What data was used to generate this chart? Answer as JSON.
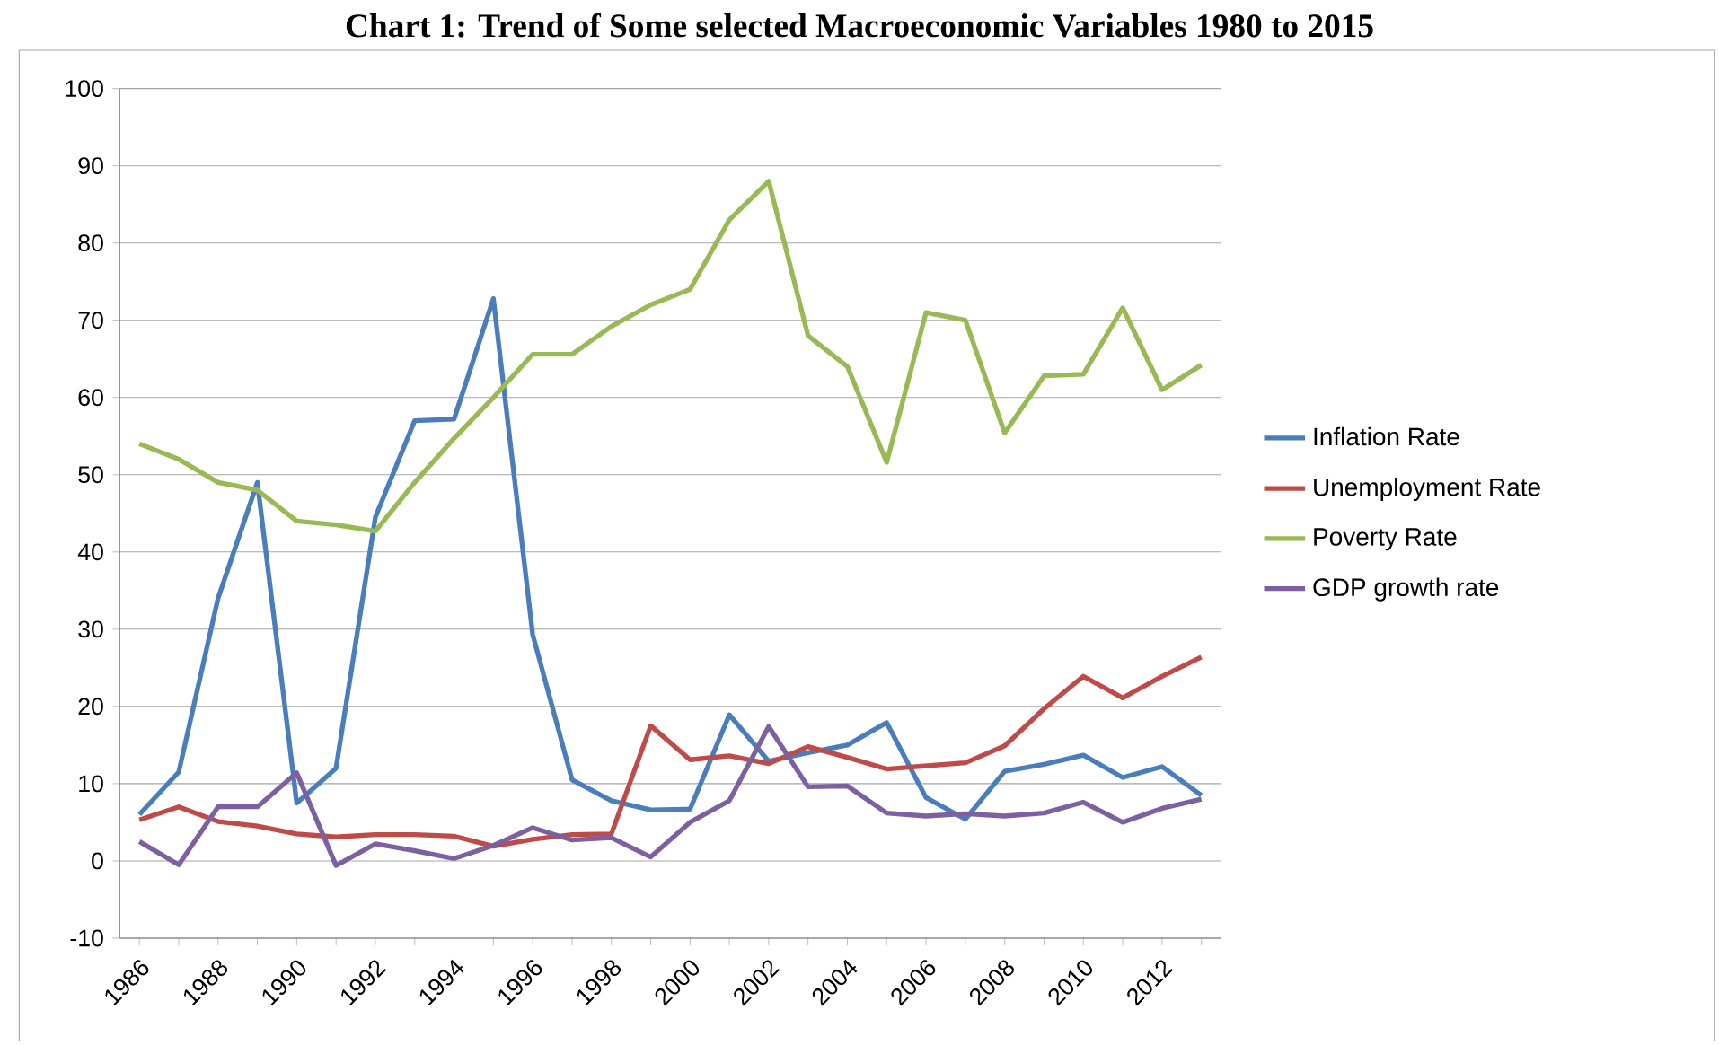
{
  "chart_data": {
    "type": "line",
    "title": "Chart 1: Trend of Some selected Macroeconomic Variables 1980 to 2015",
    "categories": [
      "1986",
      null,
      "1988",
      null,
      "1990",
      null,
      "1992",
      null,
      "1994",
      null,
      "1996",
      null,
      "1998",
      null,
      "2000",
      null,
      "2002",
      null,
      "2004",
      null,
      "2006",
      null,
      "2008",
      null,
      "2010",
      null,
      "2012",
      null
    ],
    "series": [
      {
        "name": "Inflation Rate",
        "color": "#4a7ebb",
        "values": [
          6,
          11.5,
          34,
          49,
          7.5,
          12,
          44.5,
          57,
          57.2,
          72.8,
          29.3,
          10.5,
          7.8,
          6.6,
          6.7,
          18.9,
          12.9,
          14,
          15,
          17.9,
          8.2,
          5.4,
          11.6,
          12.5,
          13.7,
          10.8,
          12.2,
          8.5
        ]
      },
      {
        "name": "Unemployment Rate",
        "color": "#be4b48",
        "values": [
          5.3,
          7,
          5.1,
          4.5,
          3.5,
          3.1,
          3.4,
          3.4,
          3.2,
          1.9,
          2.8,
          3.4,
          3.5,
          17.5,
          13.1,
          13.6,
          12.6,
          14.8,
          13.4,
          11.9,
          12.3,
          12.7,
          14.9,
          19.7,
          23.9,
          21.1,
          23.9,
          26.4
        ]
      },
      {
        "name": "Poverty Rate",
        "color": "#98b954",
        "values": [
          54,
          52,
          49,
          48,
          44,
          43.5,
          42.7,
          49,
          54.7,
          60,
          65.6,
          65.6,
          69.2,
          72,
          74,
          83,
          88,
          68,
          64,
          51.6,
          71,
          70,
          55.4,
          62.8,
          63,
          71.6,
          61,
          64.2
        ]
      },
      {
        "name": "GDP growth rate",
        "color": "#7d60a0",
        "values": [
          2.5,
          -0.5,
          7,
          7,
          11.4,
          -0.6,
          2.2,
          1.3,
          0.3,
          2,
          4.3,
          2.7,
          3,
          0.5,
          5,
          7.8,
          17.4,
          9.6,
          9.7,
          6.2,
          5.8,
          6.1,
          5.8,
          6.2,
          7.6,
          5,
          6.8,
          8
        ]
      }
    ],
    "ylim": [
      -10,
      100
    ],
    "yticks": [
      -10,
      0,
      10,
      20,
      30,
      40,
      50,
      60,
      70,
      80,
      90,
      100
    ],
    "grid": "y",
    "legend": "right",
    "marker": "none",
    "line_style": "solid"
  }
}
